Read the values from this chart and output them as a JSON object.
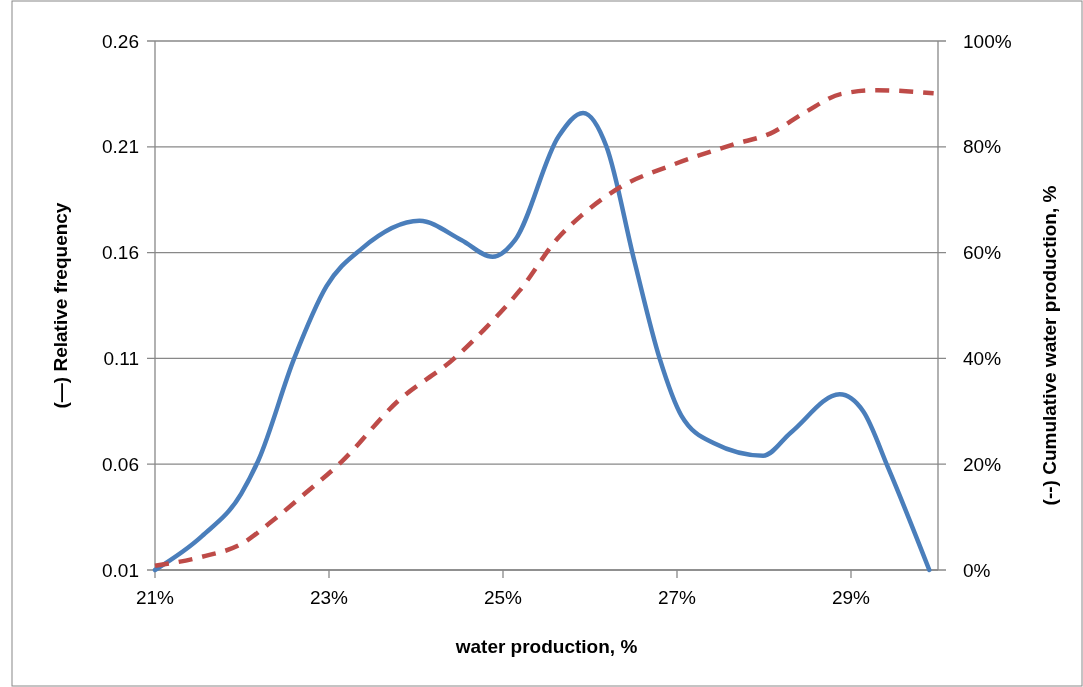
{
  "chart_data": {
    "type": "line",
    "xlabel": "water production, %",
    "ylabel": "(—) Relative frequency",
    "y2label": "(--) Cumulative water production, %",
    "xlim": [
      21,
      30
    ],
    "xticks": [
      {
        "value": 21,
        "label": "21%"
      },
      {
        "value": 23,
        "label": "23%"
      },
      {
        "value": 25,
        "label": "25%"
      },
      {
        "value": 27,
        "label": "27%"
      },
      {
        "value": 29,
        "label": "29%"
      }
    ],
    "ylim": [
      0.01,
      0.26
    ],
    "yticks": [
      0.01,
      0.06,
      0.11,
      0.16,
      0.21,
      0.26
    ],
    "y2lim": [
      0,
      100
    ],
    "y2ticks": [
      {
        "value": 0,
        "label": "0%"
      },
      {
        "value": 20,
        "label": "20%"
      },
      {
        "value": 40,
        "label": "40%"
      },
      {
        "value": 60,
        "label": "60%"
      },
      {
        "value": 80,
        "label": "80%"
      },
      {
        "value": 100,
        "label": "100%"
      }
    ],
    "grid": "y",
    "series": [
      {
        "color": "#4a7ebb",
        "line_style": "solid",
        "x": [
          21.0,
          21.54,
          21.99,
          22.19,
          22.6,
          22.97,
          23.38,
          24.04,
          24.52,
          24.88,
          25.14,
          25.64,
          25.92,
          26.19,
          26.51,
          26.8,
          27.05,
          27.42,
          27.99,
          28.31,
          28.87,
          29.14,
          29.43,
          29.9
        ],
        "values": [
          0.01,
          0.026,
          0.046,
          0.062,
          0.11,
          0.144,
          0.162,
          0.175,
          0.166,
          0.158,
          0.166,
          0.215,
          0.226,
          0.21,
          0.156,
          0.11,
          0.083,
          0.07,
          0.064,
          0.075,
          0.093,
          0.085,
          0.058,
          0.01
        ]
      },
      {
        "color": "#be4b48",
        "line_style": "dashed",
        "axis": "y2",
        "x": [
          21.0,
          21.54,
          21.99,
          22.35,
          22.72,
          23.14,
          23.79,
          24.44,
          24.78,
          25.19,
          25.64,
          25.9,
          26.35,
          26.92,
          27.66,
          28.07,
          28.48,
          28.89,
          29.3,
          29.95
        ],
        "values": [
          0.8,
          2.5,
          4.9,
          9.3,
          14.4,
          20.4,
          31.9,
          40.0,
          45.4,
          52.8,
          62.9,
          67.0,
          72.4,
          76.4,
          80.5,
          82.5,
          86.6,
          90.0,
          90.7,
          90.1
        ]
      }
    ]
  }
}
